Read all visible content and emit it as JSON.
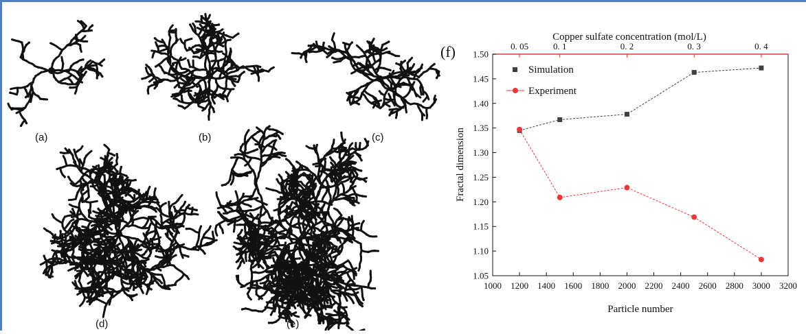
{
  "panels": {
    "a": {
      "label": "(a)"
    },
    "b": {
      "label": "(b)"
    },
    "c": {
      "label": "(c)"
    },
    "d": {
      "label": "(d)"
    },
    "e": {
      "label": "(e)"
    }
  },
  "chart_panel_label": "(f)",
  "chart_data": {
    "type": "line",
    "title": "",
    "xlabel": "Particle number",
    "ylabel": "Fractal dimension",
    "x2label": "Copper sulfate concentration (mol/L)",
    "xlim": [
      1000,
      3200
    ],
    "ylim": [
      1.05,
      1.5
    ],
    "x_ticks": [
      "1000",
      "1200",
      "1400",
      "1600",
      "1800",
      "2000",
      "2200",
      "2400",
      "2600",
      "2800",
      "3000",
      "3200"
    ],
    "y_ticks": [
      "1.05",
      "1.10",
      "1.15",
      "1.20",
      "1.25",
      "1.30",
      "1.35",
      "1.40",
      "1.45",
      "1.50"
    ],
    "top_ticks": [
      {
        "x": 1200,
        "label": "0. 05"
      },
      {
        "x": 1500,
        "label": "0. 1"
      },
      {
        "x": 2000,
        "label": "0. 2"
      },
      {
        "x": 2500,
        "label": "0. 3"
      },
      {
        "x": 3000,
        "label": "0. 4"
      }
    ],
    "x": [
      1200,
      1500,
      2000,
      2500,
      3000
    ],
    "series": [
      {
        "name": "Simulation",
        "values": [
          1.345,
          1.367,
          1.378,
          1.463,
          1.472
        ],
        "color": "#404040",
        "marker": "square"
      },
      {
        "name": "Experiment",
        "values": [
          1.347,
          1.209,
          1.229,
          1.169,
          1.083
        ],
        "color": "#e8383a",
        "marker": "circle"
      }
    ],
    "legend": "top-left",
    "grid": false,
    "axis_color": "#e8383a"
  }
}
